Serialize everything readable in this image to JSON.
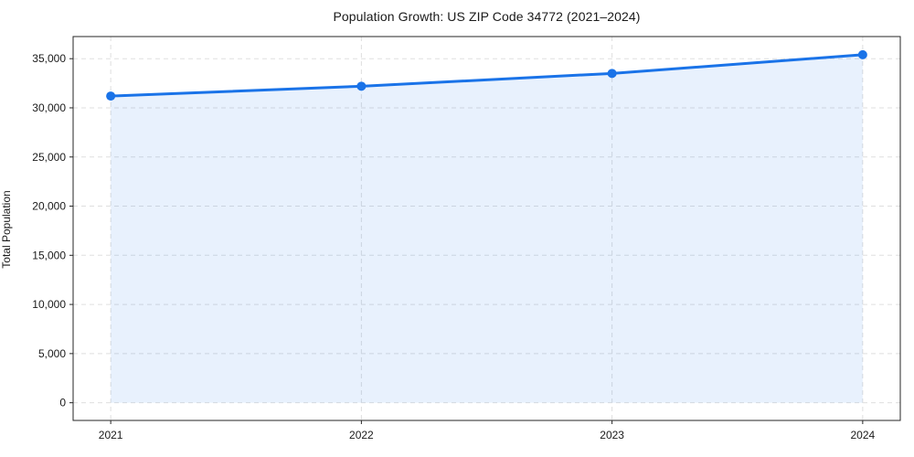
{
  "chart_data": {
    "type": "area",
    "title": "Population Growth: US ZIP Code 34772 (2021–2024)",
    "xlabel": "",
    "ylabel": "Total Population",
    "x": [
      2021,
      2022,
      2023,
      2024
    ],
    "series": [
      {
        "name": "Total Population",
        "values": [
          31200,
          32200,
          33500,
          35400
        ]
      }
    ],
    "baseline": 0,
    "xticks": [
      2021,
      2022,
      2023,
      2024
    ],
    "xtick_labels": [
      "2021",
      "2022",
      "2023",
      "2024"
    ],
    "yticks": [
      0,
      5000,
      10000,
      15000,
      20000,
      25000,
      30000,
      35000
    ],
    "ytick_labels": [
      "0",
      "5,000",
      "10,000",
      "15,000",
      "20,000",
      "25,000",
      "30,000",
      "35,000"
    ],
    "xlim": [
      2020.85,
      2024.15
    ],
    "ylim": [
      -1800,
      37250
    ],
    "grid": true,
    "grid_style": "dashed",
    "legend": false,
    "colors": {
      "line": "#1a73e8",
      "marker": "#1a73e8",
      "fill": "#1a73e8",
      "fill_opacity": 0.1,
      "grid": "#dfdfdf",
      "spine": "#262626",
      "text": "#1a1a1a",
      "background": "#ffffff"
    }
  }
}
